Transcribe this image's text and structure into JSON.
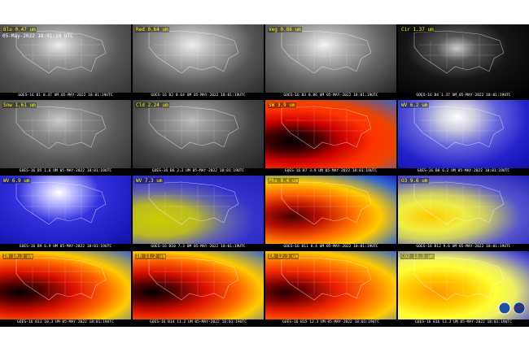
{
  "time_label": "05-May-2022 18:01:19 UTC",
  "panels": [
    {
      "label": "Blu 0.47 um",
      "caption": "GOES-16 B1 0.47 UM 05-MAY-2022 18:01:19UTC"
    },
    {
      "label": "Red 0.64 um",
      "caption": "GOES-16 B2 0.64 UM 05-MAY-2022 18:01:19UTC"
    },
    {
      "label": "Veg 0.86 um",
      "caption": "GOES-16 B3 0.86 UM 05-MAY-2022 18:01:19UTC"
    },
    {
      "label": "Cir 1.37 um",
      "caption": "GOES-16 B4 1.37 UM 05-MAY-2022 18:01:19UTC"
    },
    {
      "label": "Snw 1.61 um",
      "caption": "GOES-16 B5 1.6 UM 05-MAY-2022 18:01:19UTC"
    },
    {
      "label": "Cld 2.24 um",
      "caption": "GOES-16 B6 2.2 UM 05-MAY-2022 18:01:19UTC"
    },
    {
      "label": "SW 3.9 um",
      "caption": "GOES-16 B7 3.9 UM 05-MAY-2022 18:01:19UTC"
    },
    {
      "label": "WV 6.2 um",
      "caption": "GOES-16 B8 6.2 UM 05-MAY-2022 18:01:19UTC"
    },
    {
      "label": "WV 6.9 um",
      "caption": "GOES-16 B9 6.9 UM 05-MAY-2022 18:01:19UTC"
    },
    {
      "label": "WV 7.3 um",
      "caption": "GOES-16 B10 7.3 UM 05-MAY-2022 18:01:19UTC"
    },
    {
      "label": "Phs 8.4 um",
      "caption": "GOES-16 B11 8.4 UM 05-MAY-2022 18:01:19UTC"
    },
    {
      "label": "O3 9.6 um",
      "caption": "GOES-16 B12 9.6 UM 05-MAY-2022 18:01:19UTC"
    },
    {
      "label": "IR 10.3 um",
      "caption": "GOES-16 B13 10.3 UM 05-MAY-2022 18:01:19UTC"
    },
    {
      "label": "IR 11.2 um",
      "caption": "GOES-16 B14 11.2 UM 05-MAY-2022 18:01:19UTC"
    },
    {
      "label": "IR 12.3 um",
      "caption": "GOES-16 B15 12.3 UM 05-MAY-2022 18:01:19UTC"
    },
    {
      "label": "CO2 13.3 um",
      "caption": "GOES-16 B16 13.3 UM 05-MAY-2022 18:01:19UTC"
    }
  ]
}
